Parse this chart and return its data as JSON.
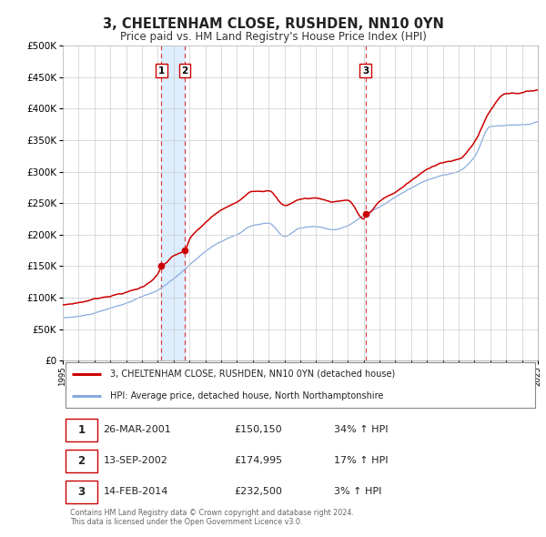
{
  "title": "3, CHELTENHAM CLOSE, RUSHDEN, NN10 0YN",
  "subtitle": "Price paid vs. HM Land Registry's House Price Index (HPI)",
  "xlim": [
    1995.0,
    2025.0
  ],
  "ylim": [
    0,
    500000
  ],
  "yticks": [
    0,
    50000,
    100000,
    150000,
    200000,
    250000,
    300000,
    350000,
    400000,
    450000,
    500000
  ],
  "sale_dates": [
    2001.23,
    2002.71,
    2014.12
  ],
  "sale_prices": [
    150150,
    174995,
    232500
  ],
  "sale_labels": [
    "1",
    "2",
    "3"
  ],
  "sale_date_strs": [
    "26-MAR-2001",
    "13-SEP-2002",
    "14-FEB-2014"
  ],
  "sale_price_strs": [
    "£150,150",
    "£174,995",
    "£232,500"
  ],
  "sale_hpi_strs": [
    "34% ↑ HPI",
    "17% ↑ HPI",
    "3% ↑ HPI"
  ],
  "property_line_color": "#cc0000",
  "hpi_line_color": "#88aadd",
  "vline_color": "#dd4444",
  "shade_color": "#ddeeff",
  "legend_property": "3, CHELTENHAM CLOSE, RUSHDEN, NN10 0YN (detached house)",
  "legend_hpi": "HPI: Average price, detached house, North Northamptonshire",
  "footnote1": "Contains HM Land Registry data © Crown copyright and database right 2024.",
  "footnote2": "This data is licensed under the Open Government Licence v3.0.",
  "background_color": "#ffffff",
  "plot_background": "#ffffff",
  "grid_color": "#cccccc"
}
